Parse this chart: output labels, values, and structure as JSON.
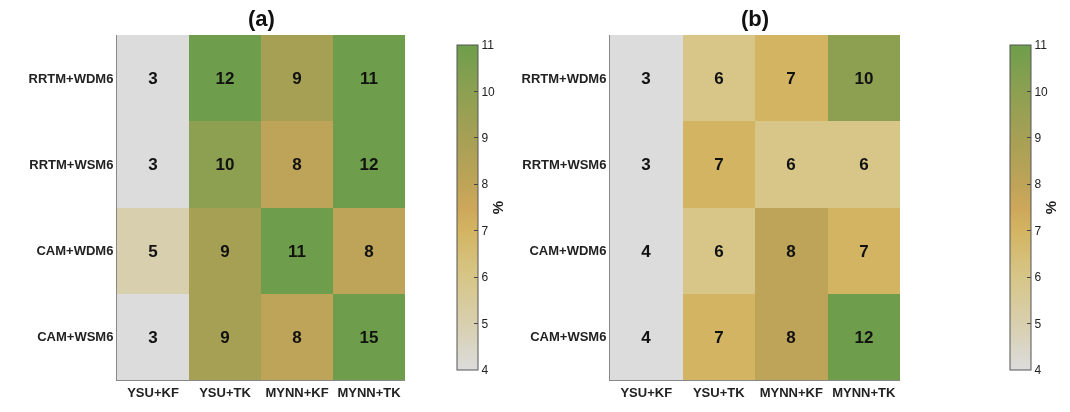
{
  "chart_data": [
    {
      "type": "heatmap",
      "title": "(a)",
      "clabel": "%",
      "data_labels": true,
      "categories": [
        "YSU+KF",
        "YSU+TK",
        "MYNN+KF",
        "MYNN+TK"
      ],
      "y_categories": [
        "RRTM+WDM6",
        "RRTM+WSM6",
        "CAM+WDM6",
        "CAM+WSM6"
      ],
      "cells": [
        [
          3,
          12,
          9,
          11
        ],
        [
          3,
          10,
          8,
          12
        ],
        [
          5,
          9,
          11,
          8
        ],
        [
          3,
          9,
          8,
          15
        ]
      ],
      "clim": [
        4,
        11
      ],
      "cticks": [
        4,
        5,
        6,
        7,
        8,
        9,
        10,
        11
      ]
    },
    {
      "type": "heatmap",
      "title": "(b)",
      "clabel": "%",
      "data_labels": true,
      "categories": [
        "YSU+KF",
        "YSU+TK",
        "MYNN+KF",
        "MYNN+TK"
      ],
      "y_categories": [
        "RRTM+WDM6",
        "RRTM+WSM6",
        "CAM+WDM6",
        "CAM+WSM6"
      ],
      "cells": [
        [
          3,
          6,
          7,
          10
        ],
        [
          3,
          7,
          6,
          6
        ],
        [
          4,
          6,
          8,
          7
        ],
        [
          4,
          7,
          8,
          12
        ]
      ],
      "clim": [
        4,
        11
      ],
      "cticks": [
        4,
        5,
        6,
        7,
        8,
        9,
        10,
        11
      ]
    }
  ]
}
